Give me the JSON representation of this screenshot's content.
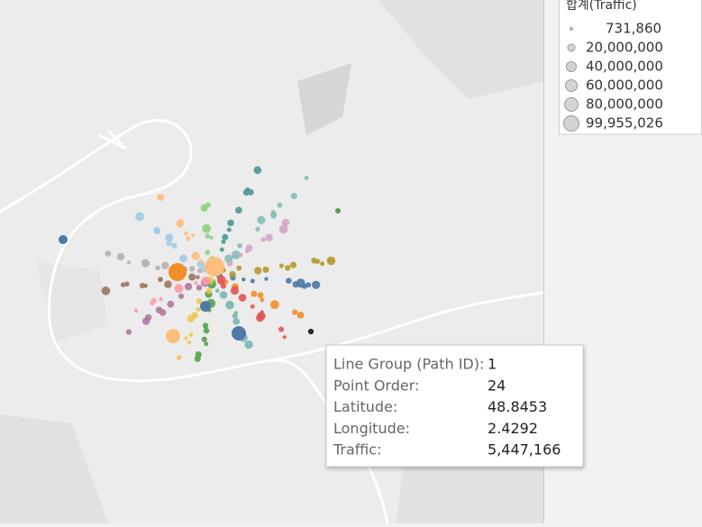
{
  "legend": {
    "title": "합계(Traffic)",
    "items": [
      "731,860",
      "20,000,000",
      "40,000,000",
      "60,000,000",
      "80,000,000",
      "99,955,026"
    ]
  },
  "tooltip": {
    "rows": [
      {
        "label": "Line Group (Path ID):",
        "value": "1"
      },
      {
        "label": "Point Order:",
        "value": "24"
      },
      {
        "label": "Latitude:",
        "value": "48.8453"
      },
      {
        "label": "Longitude:",
        "value": "2.4292"
      },
      {
        "label": "Traffic:",
        "value": "5,447,166"
      }
    ]
  }
}
